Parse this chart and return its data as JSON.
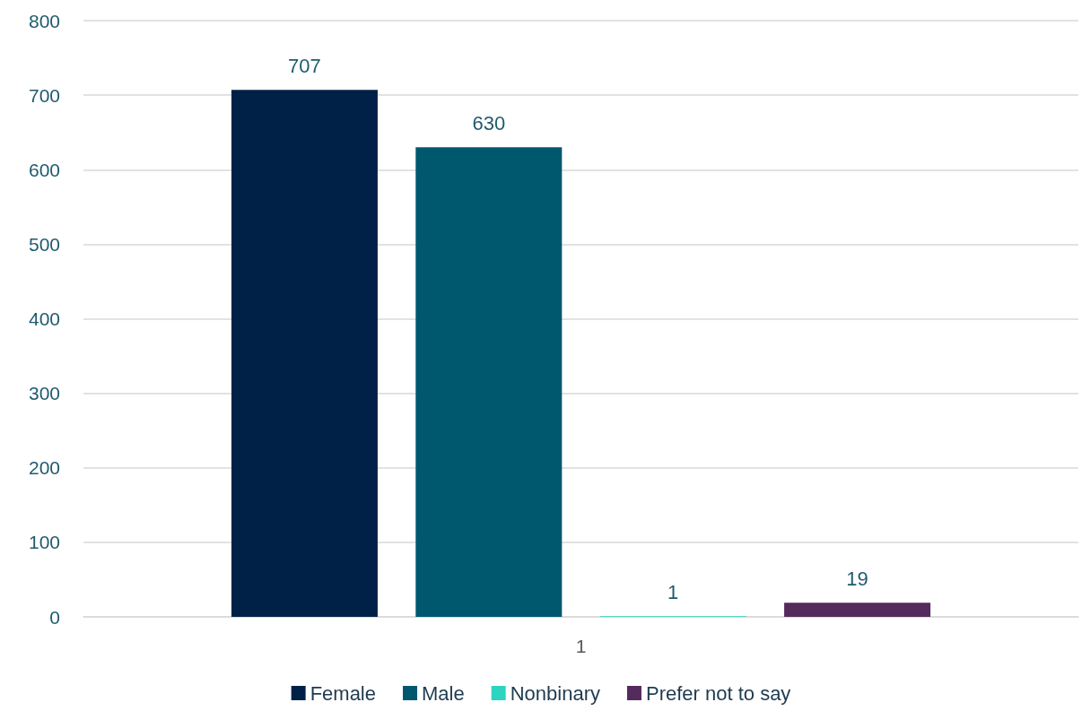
{
  "chart_data": {
    "type": "bar",
    "categories": [
      "1"
    ],
    "series": [
      {
        "name": "Female",
        "color": "#002147",
        "values": [
          707
        ]
      },
      {
        "name": "Male",
        "color": "#00586e",
        "values": [
          630
        ]
      },
      {
        "name": "Nonbinary",
        "color": "#2dd4bf",
        "values": [
          1
        ]
      },
      {
        "name": "Prefer not to say",
        "color": "#552a5c",
        "values": [
          19
        ]
      }
    ],
    "ylim": [
      0,
      800
    ],
    "yticks": [
      0,
      100,
      200,
      300,
      400,
      500,
      600,
      700,
      800
    ],
    "grid": "y",
    "legend": "bottom",
    "data_labels": true
  }
}
